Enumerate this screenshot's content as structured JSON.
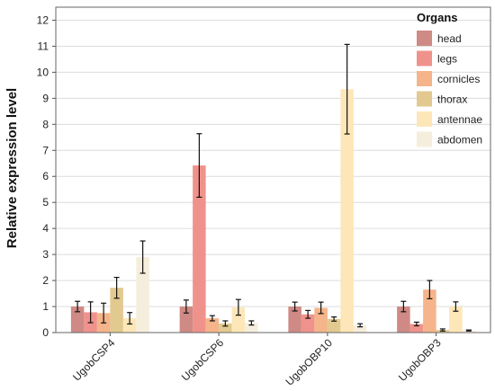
{
  "chart_data": {
    "type": "bar",
    "title": "",
    "xlabel": "",
    "ylabel": "Relative expression level",
    "ylim": [
      0,
      12.5
    ],
    "yticks": [
      0,
      1,
      2,
      3,
      4,
      5,
      6,
      7,
      8,
      9,
      10,
      11,
      12
    ],
    "grid": true,
    "legend_title": "Organs",
    "legend_position": "top-right",
    "categories": [
      "UgobCSP4",
      "UgobCSP6",
      "UgobOBP10",
      "UgobOBP3"
    ],
    "series": [
      {
        "name": "head",
        "color": "#cf8a85",
        "values": [
          1.0,
          1.0,
          1.0,
          1.0
        ],
        "errors": [
          0.2,
          0.25,
          0.17,
          0.2
        ]
      },
      {
        "name": "legs",
        "color": "#f0928c",
        "values": [
          0.78,
          6.42,
          0.7,
          0.33
        ],
        "errors": [
          0.4,
          1.22,
          0.15,
          0.07
        ]
      },
      {
        "name": "cornicles",
        "color": "#f5b48a",
        "values": [
          0.75,
          0.55,
          0.95,
          1.65
        ],
        "errors": [
          0.38,
          0.1,
          0.22,
          0.35
        ]
      },
      {
        "name": "thorax",
        "color": "#e2c98f",
        "values": [
          1.72,
          0.35,
          0.52,
          0.1
        ],
        "errors": [
          0.4,
          0.1,
          0.08,
          0.04
        ]
      },
      {
        "name": "antennae",
        "color": "#fde7b8",
        "values": [
          0.55,
          0.97,
          9.35,
          1.0
        ],
        "errors": [
          0.22,
          0.3,
          1.72,
          0.18
        ]
      },
      {
        "name": "abdomen",
        "color": "#f6eedd",
        "values": [
          2.9,
          0.37,
          0.28,
          0.08
        ],
        "errors": [
          0.62,
          0.08,
          0.06,
          0.02
        ]
      }
    ]
  }
}
